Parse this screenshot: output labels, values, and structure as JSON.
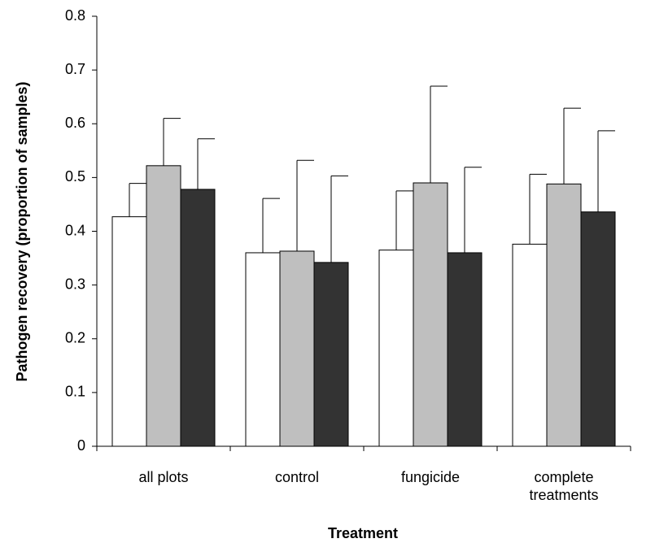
{
  "chart_data": {
    "type": "bar",
    "x_label": "Treatment",
    "y_label": "Pathogen recovery (proportion of samples)",
    "categories": [
      "all plots",
      "control",
      "fungicide",
      "complete treatments"
    ],
    "series": [
      {
        "color": "#ffffff",
        "values": [
          0.427,
          0.36,
          0.365,
          0.376
        ],
        "errors": [
          0.062,
          0.101,
          0.11,
          0.13
        ]
      },
      {
        "color": "#bfbfbf",
        "values": [
          0.522,
          0.363,
          0.49,
          0.488
        ],
        "errors": [
          0.088,
          0.169,
          0.18,
          0.141
        ]
      },
      {
        "color": "#333333",
        "values": [
          0.478,
          0.342,
          0.36,
          0.436
        ],
        "errors": [
          0.094,
          0.161,
          0.159,
          0.151
        ]
      }
    ],
    "ylim": [
      0,
      0.8
    ],
    "yticks": [
      {
        "value": 0,
        "label": "0"
      },
      0.1,
      0.2,
      0.3,
      0.4,
      0.5,
      0.6,
      0.7,
      0.8
    ],
    "grid": false
  }
}
